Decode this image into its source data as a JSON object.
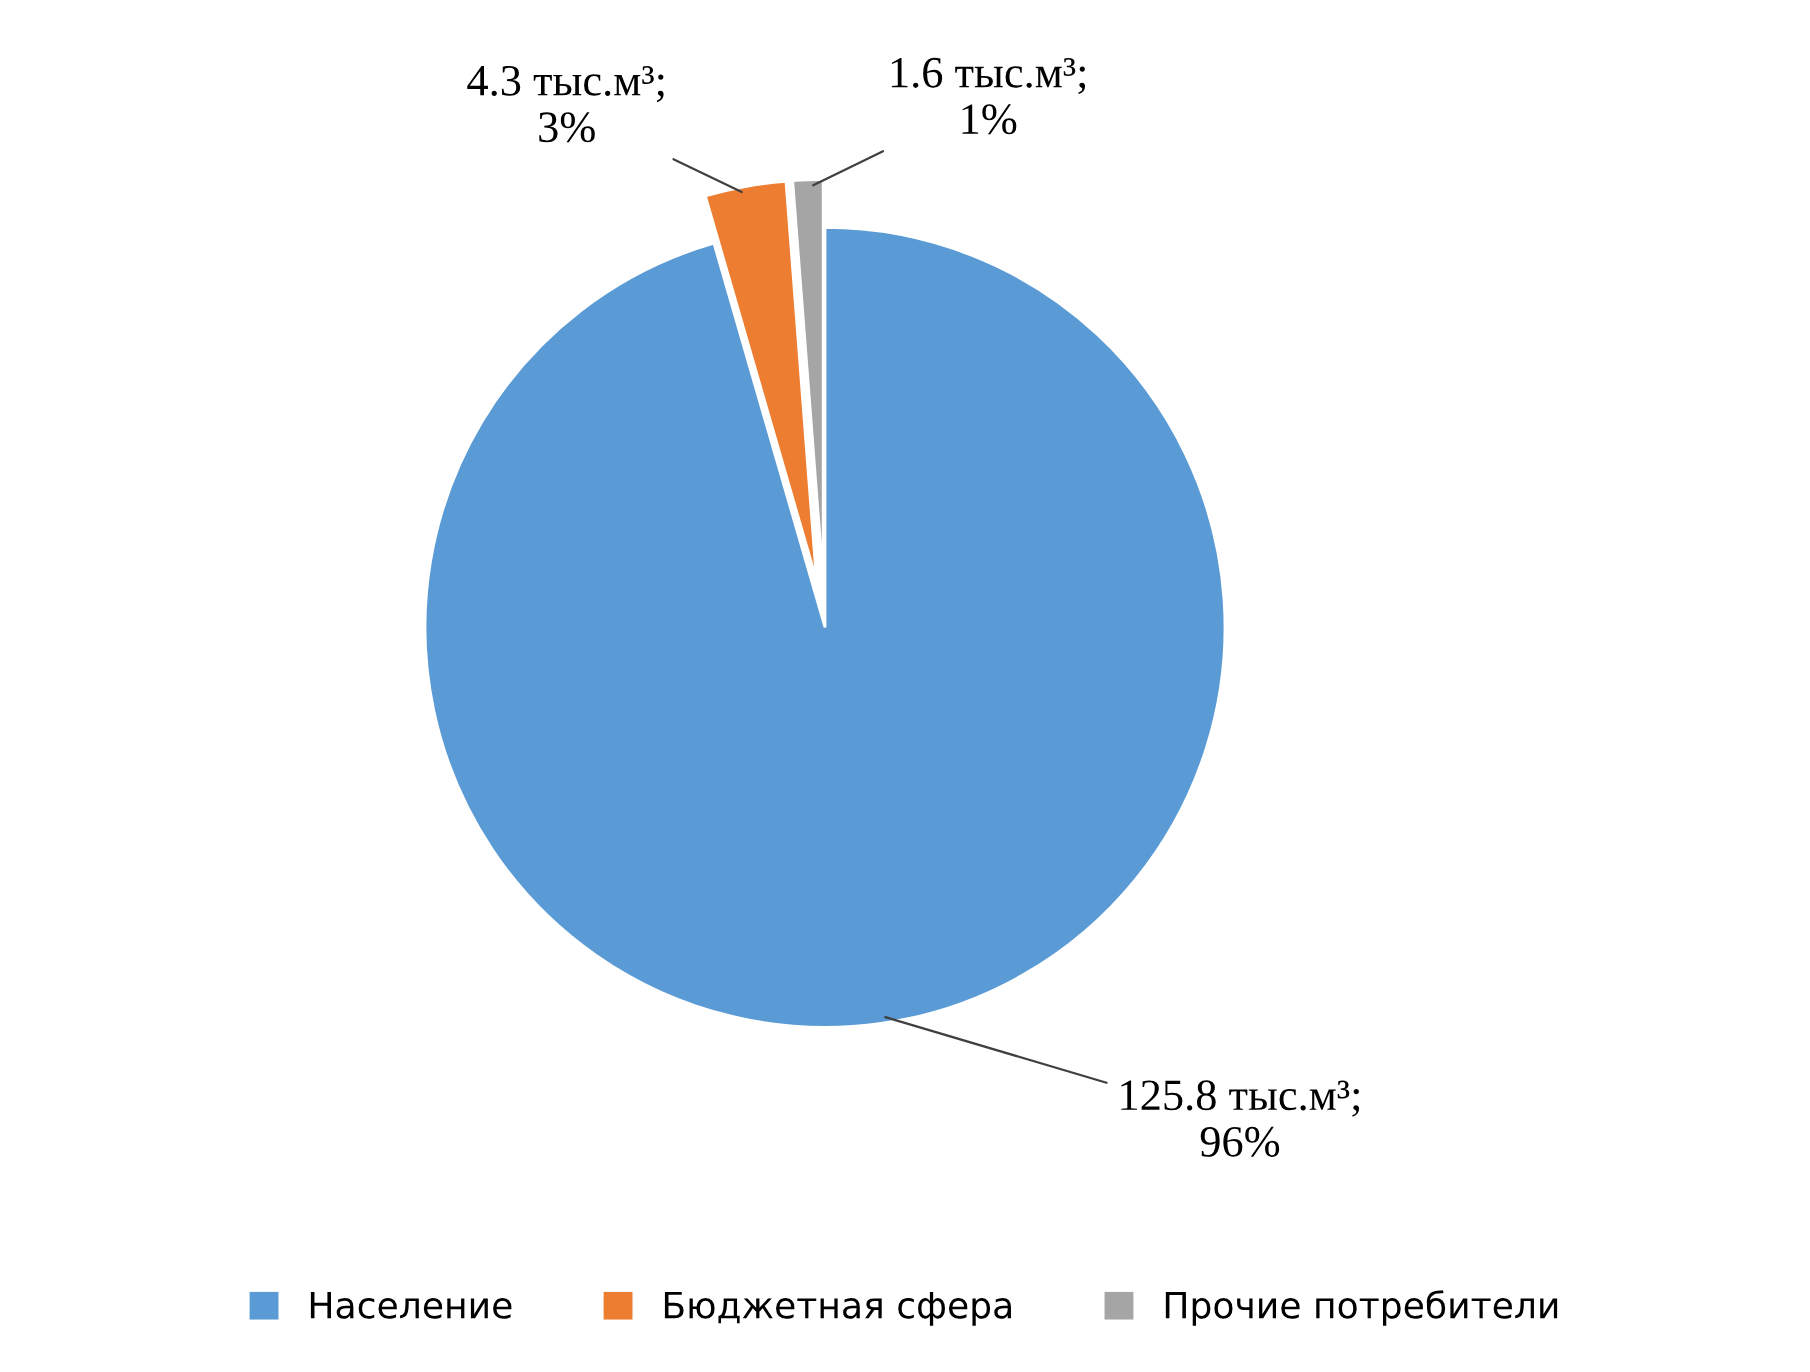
{
  "chart_data": {
    "type": "pie",
    "categories": [
      "Население",
      "Бюджетная сфера",
      "Прочие потребители"
    ],
    "values": [
      125.8,
      4.3,
      1.6
    ],
    "colors": [
      "#5b9bd5",
      "#ed7d31",
      "#a5a5a5"
    ],
    "value_labels": [
      "125.8 тыс.м³;\n96%",
      "4.3 тыс.м³;\n3%",
      "1.6 тыс.м³;\n1%"
    ],
    "legend": "bottom"
  }
}
